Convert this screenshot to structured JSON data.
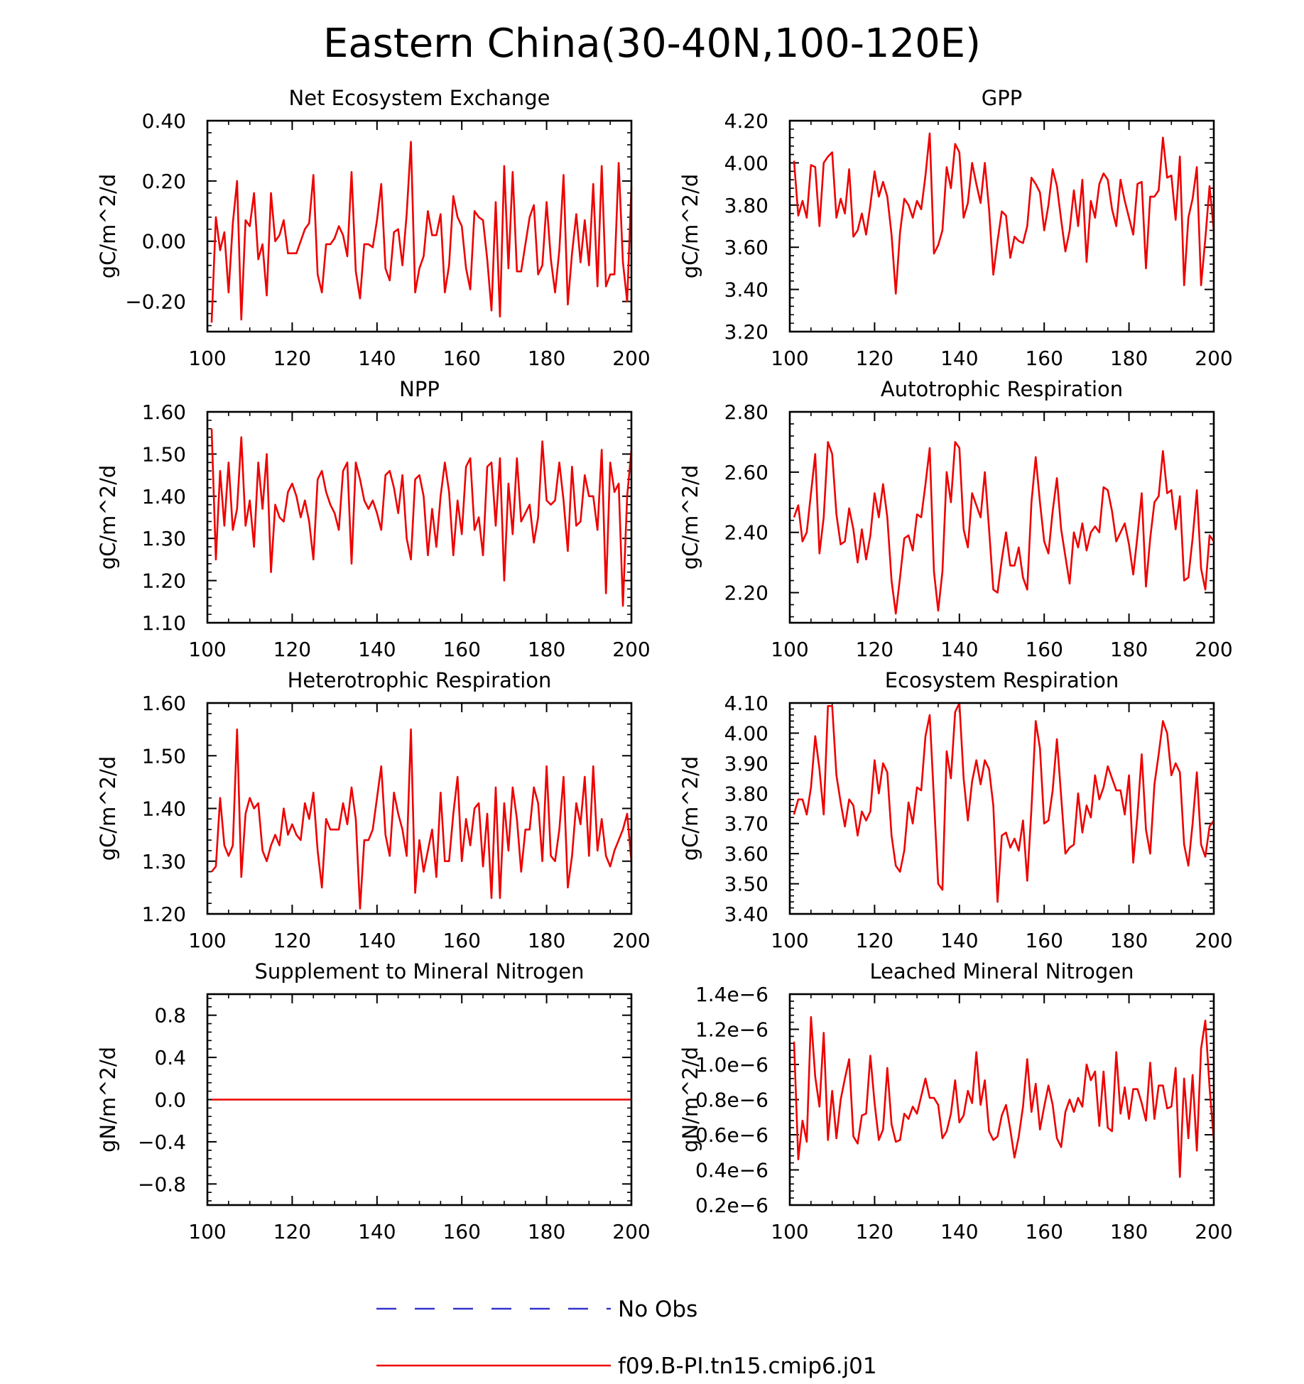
{
  "figure": {
    "title": "Eastern China(30-40N,100-120E)"
  },
  "legend": {
    "entries": [
      {
        "label": "No Obs",
        "color": "#3333cc",
        "style": "dashed"
      },
      {
        "label": "f09.B-PI.tn15.cmip6.j01",
        "color": "#ee0000",
        "style": "solid"
      }
    ]
  },
  "chart_data": [
    {
      "type": "line",
      "title": "Net Ecosystem Exchange",
      "ylabel": "gC/m^2/d",
      "xlim": [
        100,
        200
      ],
      "ylim": [
        -0.3,
        0.4
      ],
      "xticks": [
        100,
        120,
        140,
        160,
        180,
        200
      ],
      "xtick_labels": [
        "100",
        "120",
        "140",
        "160",
        "180",
        "200"
      ],
      "yticks": [
        -0.2,
        0.0,
        0.2,
        0.4
      ],
      "ytick_labels": [
        "−0.20",
        "0.00",
        "0.20",
        "0.40"
      ],
      "series": [
        {
          "name": "f09.B-PI.tn15.cmip6.j01",
          "color": "#ee0000",
          "x_start": 101,
          "x_step": 1,
          "values": [
            -0.27,
            0.08,
            -0.03,
            0.03,
            -0.17,
            0.06,
            0.2,
            -0.26,
            0.07,
            0.05,
            0.16,
            -0.06,
            -0.01,
            -0.18,
            0.16,
            0.0,
            0.02,
            0.07,
            -0.04,
            -0.04,
            -0.04,
            0.0,
            0.04,
            0.06,
            0.22,
            -0.11,
            -0.17,
            -0.01,
            -0.01,
            0.01,
            0.05,
            0.02,
            -0.05,
            0.23,
            -0.1,
            -0.19,
            -0.01,
            -0.01,
            -0.02,
            0.07,
            0.19,
            -0.09,
            -0.13,
            0.03,
            0.04,
            -0.08,
            0.09,
            0.33,
            -0.17,
            -0.09,
            -0.05,
            0.1,
            0.02,
            0.02,
            0.09,
            -0.17,
            -0.08,
            0.15,
            0.08,
            0.05,
            -0.09,
            -0.16,
            0.1,
            0.08,
            0.07,
            -0.06,
            -0.23,
            0.13,
            -0.25,
            0.25,
            -0.09,
            0.23,
            -0.1,
            -0.1,
            -0.01,
            0.08,
            0.12,
            -0.11,
            -0.08,
            0.13,
            -0.06,
            -0.17,
            -0.03,
            0.22,
            -0.21,
            -0.04,
            0.09,
            -0.07,
            0.07,
            -0.08,
            0.19,
            -0.15,
            0.25,
            -0.15,
            -0.11,
            -0.11,
            0.26,
            -0.07,
            -0.2,
            0.18
          ]
        }
      ]
    },
    {
      "type": "line",
      "title": "GPP",
      "ylabel": "gC/m^2/d",
      "xlim": [
        100,
        200
      ],
      "ylim": [
        3.2,
        4.2
      ],
      "xticks": [
        100,
        120,
        140,
        160,
        180,
        200
      ],
      "xtick_labels": [
        "100",
        "120",
        "140",
        "160",
        "180",
        "200"
      ],
      "yticks": [
        3.2,
        3.4,
        3.6,
        3.8,
        4.0,
        4.2
      ],
      "ytick_labels": [
        "3.20",
        "3.40",
        "3.60",
        "3.80",
        "4.00",
        "4.20"
      ],
      "series": [
        {
          "name": "f09.B-PI.tn15.cmip6.j01",
          "color": "#ee0000",
          "x_start": 101,
          "x_step": 1,
          "values": [
            4.01,
            3.75,
            3.82,
            3.74,
            3.99,
            3.98,
            3.7,
            4.0,
            4.03,
            4.05,
            3.74,
            3.83,
            3.76,
            3.97,
            3.65,
            3.68,
            3.76,
            3.66,
            3.8,
            3.96,
            3.84,
            3.91,
            3.84,
            3.66,
            3.38,
            3.67,
            3.83,
            3.8,
            3.74,
            3.82,
            3.78,
            3.94,
            4.14,
            3.57,
            3.61,
            3.68,
            3.98,
            3.88,
            4.09,
            4.05,
            3.74,
            3.81,
            4.0,
            3.9,
            3.81,
            4.0,
            3.78,
            3.47,
            3.63,
            3.77,
            3.75,
            3.55,
            3.65,
            3.63,
            3.62,
            3.7,
            3.93,
            3.9,
            3.86,
            3.68,
            3.8,
            3.97,
            3.89,
            3.73,
            3.58,
            3.68,
            3.87,
            3.7,
            3.92,
            3.53,
            3.82,
            3.74,
            3.9,
            3.95,
            3.92,
            3.78,
            3.7,
            3.92,
            3.82,
            3.74,
            3.66,
            3.9,
            3.91,
            3.5,
            3.84,
            3.84,
            3.87,
            4.12,
            3.93,
            3.94,
            3.73,
            4.03,
            3.42,
            3.74,
            3.83,
            3.98,
            3.42,
            3.64,
            3.89,
            3.68
          ]
        }
      ]
    },
    {
      "type": "line",
      "title": "NPP",
      "ylabel": "gC/m^2/d",
      "xlim": [
        100,
        200
      ],
      "ylim": [
        1.1,
        1.6
      ],
      "xticks": [
        100,
        120,
        140,
        160,
        180,
        200
      ],
      "xtick_labels": [
        "100",
        "120",
        "140",
        "160",
        "180",
        "200"
      ],
      "yticks": [
        1.1,
        1.2,
        1.3,
        1.4,
        1.5,
        1.6
      ],
      "ytick_labels": [
        "1.10",
        "1.20",
        "1.30",
        "1.40",
        "1.50",
        "1.60"
      ],
      "series": [
        {
          "name": "f09.B-PI.tn15.cmip6.j01",
          "color": "#ee0000",
          "x_start": 101,
          "x_step": 1,
          "values": [
            1.56,
            1.25,
            1.46,
            1.33,
            1.48,
            1.32,
            1.37,
            1.54,
            1.33,
            1.39,
            1.28,
            1.48,
            1.37,
            1.5,
            1.22,
            1.38,
            1.35,
            1.34,
            1.41,
            1.43,
            1.4,
            1.35,
            1.39,
            1.34,
            1.25,
            1.44,
            1.46,
            1.41,
            1.38,
            1.36,
            1.32,
            1.46,
            1.48,
            1.24,
            1.48,
            1.44,
            1.39,
            1.37,
            1.39,
            1.36,
            1.32,
            1.45,
            1.46,
            1.42,
            1.36,
            1.45,
            1.3,
            1.25,
            1.44,
            1.45,
            1.4,
            1.26,
            1.37,
            1.28,
            1.4,
            1.48,
            1.41,
            1.26,
            1.39,
            1.31,
            1.47,
            1.49,
            1.32,
            1.35,
            1.26,
            1.47,
            1.48,
            1.33,
            1.49,
            1.2,
            1.43,
            1.31,
            1.49,
            1.34,
            1.36,
            1.38,
            1.29,
            1.35,
            1.53,
            1.39,
            1.38,
            1.39,
            1.48,
            1.39,
            1.27,
            1.47,
            1.33,
            1.34,
            1.45,
            1.4,
            1.4,
            1.32,
            1.51,
            1.17,
            1.48,
            1.41,
            1.43,
            1.14,
            1.4,
            1.51
          ]
        }
      ]
    },
    {
      "type": "line",
      "title": "Autotrophic Respiration",
      "ylabel": "gC/m^2/d",
      "xlim": [
        100,
        200
      ],
      "ylim": [
        2.1,
        2.8
      ],
      "xticks": [
        100,
        120,
        140,
        160,
        180,
        200
      ],
      "xtick_labels": [
        "100",
        "120",
        "140",
        "160",
        "180",
        "200"
      ],
      "yticks": [
        2.2,
        2.4,
        2.6,
        2.8
      ],
      "ytick_labels": [
        "2.20",
        "2.40",
        "2.60",
        "2.80"
      ],
      "series": [
        {
          "name": "f09.B-PI.tn15.cmip6.j01",
          "color": "#ee0000",
          "x_start": 101,
          "x_step": 1,
          "values": [
            2.45,
            2.49,
            2.37,
            2.4,
            2.53,
            2.66,
            2.33,
            2.45,
            2.7,
            2.66,
            2.46,
            2.36,
            2.37,
            2.48,
            2.41,
            2.3,
            2.41,
            2.31,
            2.39,
            2.53,
            2.45,
            2.56,
            2.45,
            2.24,
            2.13,
            2.25,
            2.38,
            2.39,
            2.34,
            2.46,
            2.45,
            2.56,
            2.68,
            2.27,
            2.14,
            2.27,
            2.6,
            2.5,
            2.7,
            2.68,
            2.41,
            2.35,
            2.53,
            2.49,
            2.45,
            2.6,
            2.41,
            2.21,
            2.2,
            2.31,
            2.4,
            2.29,
            2.29,
            2.35,
            2.25,
            2.21,
            2.5,
            2.65,
            2.5,
            2.37,
            2.33,
            2.47,
            2.58,
            2.41,
            2.32,
            2.23,
            2.4,
            2.35,
            2.43,
            2.34,
            2.4,
            2.42,
            2.4,
            2.55,
            2.54,
            2.47,
            2.37,
            2.4,
            2.43,
            2.36,
            2.26,
            2.39,
            2.53,
            2.22,
            2.38,
            2.5,
            2.52,
            2.67,
            2.53,
            2.54,
            2.41,
            2.52,
            2.24,
            2.25,
            2.38,
            2.54,
            2.28,
            2.21,
            2.39,
            2.37
          ]
        }
      ]
    },
    {
      "type": "line",
      "title": "Heterotrophic Respiration",
      "ylabel": "gC/m^2/d",
      "xlim": [
        100,
        200
      ],
      "ylim": [
        1.2,
        1.6
      ],
      "xticks": [
        100,
        120,
        140,
        160,
        180,
        200
      ],
      "xtick_labels": [
        "100",
        "120",
        "140",
        "160",
        "180",
        "200"
      ],
      "yticks": [
        1.2,
        1.3,
        1.4,
        1.5,
        1.6
      ],
      "ytick_labels": [
        "1.20",
        "1.30",
        "1.40",
        "1.50",
        "1.60"
      ],
      "series": [
        {
          "name": "f09.B-PI.tn15.cmip6.j01",
          "color": "#ee0000",
          "x_start": 101,
          "x_step": 1,
          "values": [
            1.28,
            1.29,
            1.42,
            1.33,
            1.31,
            1.33,
            1.55,
            1.27,
            1.39,
            1.42,
            1.4,
            1.41,
            1.32,
            1.3,
            1.33,
            1.35,
            1.33,
            1.4,
            1.35,
            1.37,
            1.35,
            1.34,
            1.41,
            1.38,
            1.43,
            1.32,
            1.25,
            1.38,
            1.36,
            1.36,
            1.36,
            1.41,
            1.37,
            1.44,
            1.38,
            1.21,
            1.34,
            1.34,
            1.36,
            1.42,
            1.48,
            1.35,
            1.31,
            1.43,
            1.39,
            1.36,
            1.31,
            1.55,
            1.24,
            1.34,
            1.28,
            1.32,
            1.36,
            1.27,
            1.43,
            1.3,
            1.3,
            1.39,
            1.46,
            1.3,
            1.38,
            1.33,
            1.4,
            1.41,
            1.29,
            1.39,
            1.23,
            1.44,
            1.23,
            1.41,
            1.32,
            1.44,
            1.38,
            1.28,
            1.36,
            1.36,
            1.44,
            1.41,
            1.3,
            1.48,
            1.31,
            1.3,
            1.36,
            1.46,
            1.25,
            1.31,
            1.41,
            1.37,
            1.46,
            1.31,
            1.48,
            1.32,
            1.38,
            1.31,
            1.29,
            1.32,
            1.34,
            1.36,
            1.39,
            1.3
          ]
        }
      ]
    },
    {
      "type": "line",
      "title": "Ecosystem Respiration",
      "ylabel": "gC/m^2/d",
      "xlim": [
        100,
        200
      ],
      "ylim": [
        3.4,
        4.1
      ],
      "xticks": [
        100,
        120,
        140,
        160,
        180,
        200
      ],
      "xtick_labels": [
        "100",
        "120",
        "140",
        "160",
        "180",
        "200"
      ],
      "yticks": [
        3.4,
        3.5,
        3.6,
        3.7,
        3.8,
        3.9,
        4.0,
        4.1
      ],
      "ytick_labels": [
        "3.40",
        "3.50",
        "3.60",
        "3.70",
        "3.80",
        "3.90",
        "4.00",
        "4.10"
      ],
      "series": [
        {
          "name": "f09.B-PI.tn15.cmip6.j01",
          "color": "#ee0000",
          "x_start": 101,
          "x_step": 1,
          "values": [
            3.73,
            3.78,
            3.78,
            3.73,
            3.82,
            3.99,
            3.88,
            3.73,
            4.09,
            4.09,
            3.86,
            3.77,
            3.69,
            3.78,
            3.76,
            3.66,
            3.74,
            3.71,
            3.74,
            3.91,
            3.8,
            3.9,
            3.87,
            3.66,
            3.56,
            3.54,
            3.61,
            3.77,
            3.7,
            3.82,
            3.81,
            3.99,
            4.06,
            3.78,
            3.5,
            3.48,
            3.94,
            3.85,
            4.07,
            4.1,
            3.85,
            3.71,
            3.84,
            3.91,
            3.83,
            3.91,
            3.88,
            3.76,
            3.44,
            3.66,
            3.67,
            3.62,
            3.65,
            3.61,
            3.71,
            3.51,
            3.75,
            4.04,
            3.95,
            3.7,
            3.71,
            3.81,
            3.98,
            3.79,
            3.6,
            3.62,
            3.63,
            3.8,
            3.67,
            3.76,
            3.72,
            3.86,
            3.78,
            3.82,
            3.89,
            3.85,
            3.81,
            3.81,
            3.73,
            3.86,
            3.57,
            3.73,
            3.93,
            3.68,
            3.6,
            3.83,
            3.93,
            4.04,
            4.0,
            3.86,
            3.9,
            3.87,
            3.63,
            3.56,
            3.7,
            3.87,
            3.63,
            3.59,
            3.69,
            3.71
          ]
        }
      ]
    },
    {
      "type": "line",
      "title": "Supplement to Mineral Nitrogen",
      "ylabel": "gN/m^2/d",
      "xlim": [
        100,
        200
      ],
      "ylim": [
        -1.0,
        1.0
      ],
      "xticks": [
        100,
        120,
        140,
        160,
        180,
        200
      ],
      "xtick_labels": [
        "100",
        "120",
        "140",
        "160",
        "180",
        "200"
      ],
      "yticks": [
        -0.8,
        -0.4,
        0.0,
        0.4,
        0.8
      ],
      "ytick_labels": [
        "−0.8",
        "−0.4",
        "0.0",
        "0.4",
        "0.8"
      ],
      "series": [
        {
          "name": "f09.B-PI.tn15.cmip6.j01",
          "color": "#ee0000",
          "x_start": 101,
          "x_step": 99,
          "values": [
            0.0,
            0.0
          ]
        }
      ]
    },
    {
      "type": "line",
      "title": "Leached Mineral Nitrogen",
      "ylabel": "gN/m^2/d",
      "xlim": [
        100,
        200
      ],
      "ylim": [
        0.2,
        1.4
      ],
      "y_unit_suffix": "e-6",
      "xticks": [
        100,
        120,
        140,
        160,
        180,
        200
      ],
      "xtick_labels": [
        "100",
        "120",
        "140",
        "160",
        "180",
        "200"
      ],
      "yticks": [
        0.2,
        0.4,
        0.6,
        0.8,
        1.0,
        1.2,
        1.4
      ],
      "ytick_labels": [
        "0.2e−6",
        "0.4e−6",
        "0.6e−6",
        "0.8e−6",
        "1.0e−6",
        "1.2e−6",
        "1.4e−6"
      ],
      "series": [
        {
          "name": "f09.B-PI.tn15.cmip6.j01",
          "color": "#ee0000",
          "x_start": 101,
          "x_step": 1,
          "values": [
            1.13,
            0.46,
            0.68,
            0.56,
            1.27,
            0.93,
            0.76,
            1.18,
            0.57,
            0.85,
            0.58,
            0.8,
            0.92,
            1.03,
            0.59,
            0.55,
            0.71,
            0.72,
            1.05,
            0.78,
            0.57,
            0.63,
            0.98,
            0.66,
            0.56,
            0.57,
            0.72,
            0.69,
            0.76,
            0.72,
            0.82,
            0.92,
            0.81,
            0.81,
            0.77,
            0.58,
            0.62,
            0.72,
            0.91,
            0.67,
            0.71,
            0.85,
            0.78,
            1.07,
            0.77,
            0.91,
            0.62,
            0.57,
            0.59,
            0.71,
            0.77,
            0.63,
            0.47,
            0.59,
            0.76,
            1.03,
            0.73,
            0.89,
            0.63,
            0.76,
            0.88,
            0.77,
            0.58,
            0.53,
            0.73,
            0.8,
            0.73,
            0.81,
            0.76,
            1.0,
            0.91,
            0.96,
            0.65,
            0.96,
            0.64,
            0.62,
            1.07,
            0.72,
            0.87,
            0.69,
            0.86,
            0.86,
            0.78,
            0.68,
            1.01,
            0.69,
            0.88,
            0.88,
            0.75,
            0.76,
            0.98,
            0.36,
            0.92,
            0.58,
            0.94,
            0.51,
            1.09,
            1.25,
            0.87,
            0.57
          ]
        }
      ]
    }
  ]
}
